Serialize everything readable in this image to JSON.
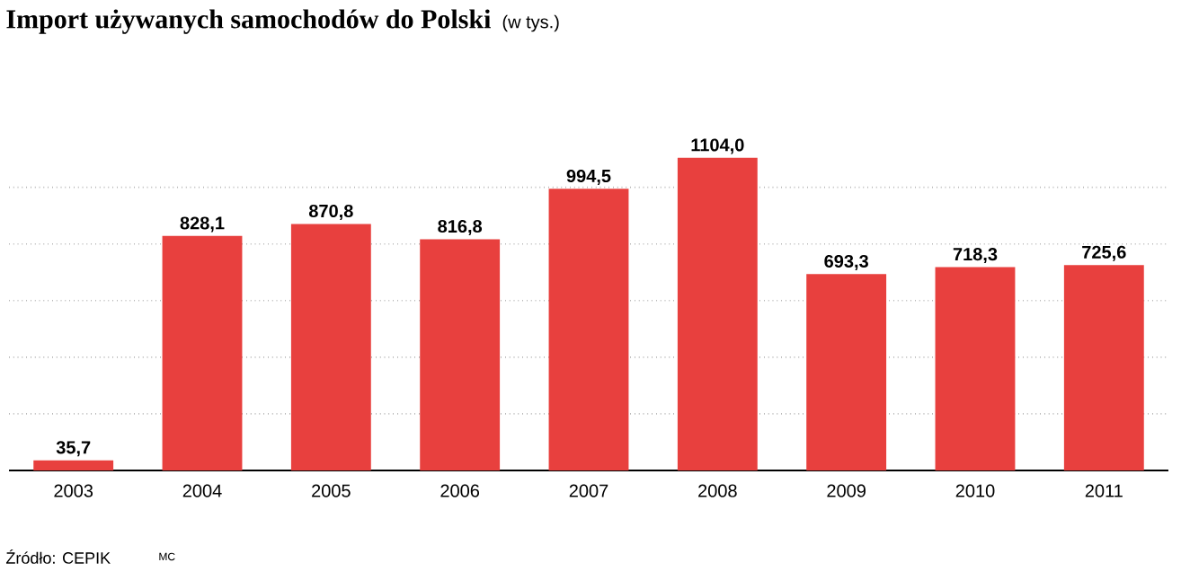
{
  "chart_data": {
    "type": "bar",
    "title": "Import używanych samochodów do Polski",
    "subtitle": "(w tys.)",
    "categories": [
      "2003",
      "2004",
      "2005",
      "2006",
      "2007",
      "2008",
      "2009",
      "2010",
      "2011"
    ],
    "values": [
      35.7,
      828.1,
      870.8,
      816.8,
      994.5,
      1104.0,
      693.3,
      718.3,
      725.6
    ],
    "value_labels": [
      "35,7",
      "828,1",
      "870,8",
      "816,8",
      "994,5",
      "1104,0",
      "693,3",
      "718,3",
      "725,6"
    ],
    "color": "#e8403e",
    "grid": "y",
    "tick_labels": "x",
    "annotations": [
      "Źródło: CEPIK",
      "MC"
    ]
  }
}
